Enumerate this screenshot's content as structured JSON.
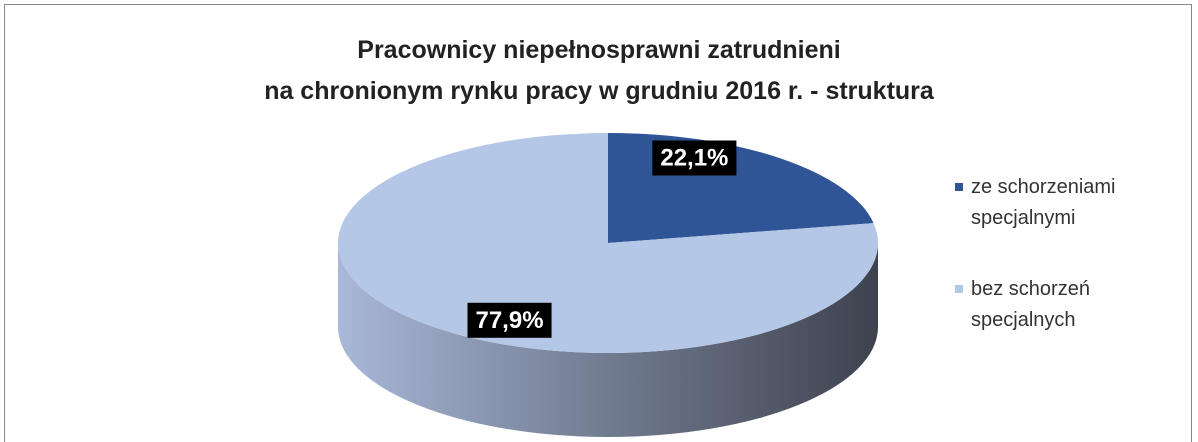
{
  "chart_data": {
    "type": "pie",
    "title": "Pracownicy niepełnosprawni zatrudnieni\nna chronionym rynku pracy w grudniu 2016 r. - struktura",
    "categories": [
      "ze schorzeniami specjalnymi",
      "bez schorzeń specjalnych"
    ],
    "values": [
      22.1,
      77.9
    ],
    "value_labels": [
      "22,1%",
      "77,9%"
    ],
    "colors": [
      "#2f5597",
      "#b4c7e7"
    ],
    "legend": "right"
  }
}
